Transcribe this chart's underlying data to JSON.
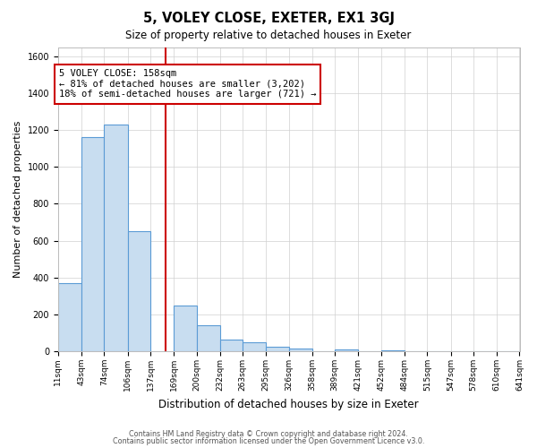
{
  "title": "5, VOLEY CLOSE, EXETER, EX1 3GJ",
  "subtitle": "Size of property relative to detached houses in Exeter",
  "xlabel": "Distribution of detached houses by size in Exeter",
  "ylabel": "Number of detached properties",
  "footer_line1": "Contains HM Land Registry data © Crown copyright and database right 2024.",
  "footer_line2": "Contains public sector information licensed under the Open Government Licence v3.0.",
  "bin_labels": [
    "11sqm",
    "43sqm",
    "74sqm",
    "106sqm",
    "137sqm",
    "169sqm",
    "200sqm",
    "232sqm",
    "263sqm",
    "295sqm",
    "326sqm",
    "358sqm",
    "389sqm",
    "421sqm",
    "452sqm",
    "484sqm",
    "515sqm",
    "547sqm",
    "578sqm",
    "610sqm",
    "641sqm"
  ],
  "bin_edges": [
    11,
    43,
    74,
    106,
    137,
    169,
    200,
    232,
    263,
    295,
    326,
    358,
    389,
    421,
    452,
    484,
    515,
    547,
    578,
    610,
    641
  ],
  "bar_heights": [
    370,
    1160,
    1230,
    650,
    0,
    250,
    140,
    65,
    50,
    25,
    15,
    0,
    10,
    0,
    8,
    0,
    0,
    0,
    0,
    0
  ],
  "bar_color": "#c8ddf0",
  "bar_edge_color": "#5b9bd5",
  "property_size": 158,
  "vline_color": "#cc0000",
  "annot_line1": "5 VOLEY CLOSE: 158sqm",
  "annot_line2": "← 81% of detached houses are smaller (3,202)",
  "annot_line3": "18% of semi-detached houses are larger (721) →",
  "annot_box_edge_color": "#cc0000",
  "bg_color": "#ffffff",
  "plot_bg_color": "#ffffff",
  "grid_color": "#d0d0d0",
  "ylim": [
    0,
    1650
  ],
  "yticks": [
    0,
    200,
    400,
    600,
    800,
    1000,
    1200,
    1400,
    1600
  ]
}
